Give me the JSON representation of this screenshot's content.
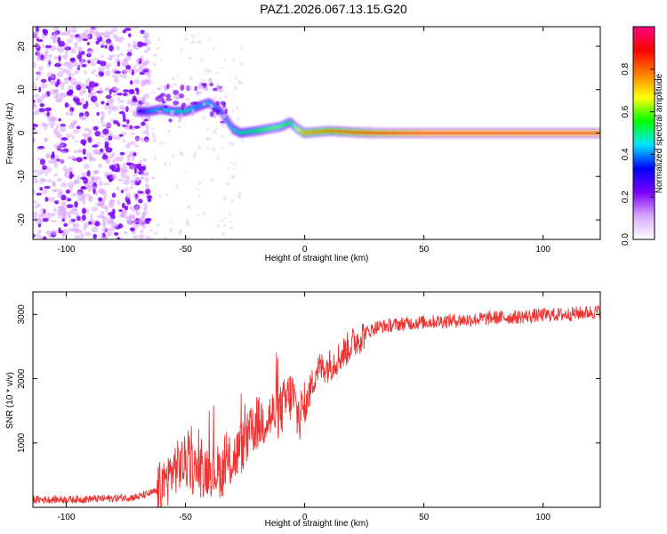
{
  "title": "PAZ1.2026.067.13.15.G20",
  "chart_data": [
    {
      "type": "heatmap",
      "name": "spectrogram",
      "xlabel": "Height of straight line (km)",
      "ylabel": "Frequency (Hz)",
      "xlim": [
        -114,
        124
      ],
      "ylim": [
        -24.5,
        24.5
      ],
      "x_ticks": [
        -100,
        -50,
        0,
        50,
        100
      ],
      "y_ticks": [
        -20,
        -10,
        0,
        10,
        20
      ],
      "colorbar": {
        "label": "Normalized spectral amplitude",
        "range": [
          0,
          1
        ],
        "ticks": [
          0.0,
          0.2,
          0.4,
          0.6,
          0.8
        ],
        "colors": [
          "#ffffff",
          "#d9a6ff",
          "#7a00ff",
          "#0000ff",
          "#00e5ff",
          "#00ff00",
          "#ffff00",
          "#ff7f00",
          "#ff0000",
          "#ff0080"
        ]
      },
      "main_tone": {
        "x": [
          -70,
          -65,
          -60,
          -55,
          -50,
          -45,
          -40,
          -35,
          -30,
          -27,
          -20,
          -15,
          -10,
          -6,
          -3,
          0,
          10,
          20,
          30,
          50,
          80,
          100,
          124
        ],
        "freq": [
          5,
          5,
          5.5,
          5,
          5,
          6,
          7,
          5,
          1,
          0,
          0.5,
          1,
          1.5,
          2.5,
          1,
          0,
          0.5,
          0.2,
          0,
          0,
          0,
          0,
          0
        ],
        "amplitude": [
          0.3,
          0.4,
          0.45,
          0.45,
          0.5,
          0.4,
          0.45,
          0.4,
          0.45,
          0.5,
          0.55,
          0.6,
          0.6,
          0.55,
          0.65,
          0.75,
          0.8,
          0.85,
          0.9,
          0.95,
          0.95,
          0.95,
          0.95
        ]
      },
      "noise_region_x": [
        -114,
        -65
      ]
    },
    {
      "type": "line",
      "name": "snr",
      "xlabel": "Height of straight line (km)",
      "ylabel": "SNR (10 * v/v)",
      "xlim": [
        -114,
        124
      ],
      "ylim": [
        0,
        3350
      ],
      "x_ticks": [
        -100,
        -50,
        0,
        50,
        100
      ],
      "y_ticks": [
        1000,
        2000,
        3000
      ],
      "color": "#ee3333",
      "series": [
        {
          "name": "SNR",
          "x": [
            -114,
            -100,
            -80,
            -70,
            -62,
            -58,
            -55,
            -50,
            -45,
            -40,
            -35,
            -30,
            -25,
            -20,
            -15,
            -10,
            -7,
            -5,
            -3,
            0,
            3,
            5,
            10,
            15,
            20,
            25,
            30,
            40,
            50,
            60,
            70,
            80,
            90,
            100,
            110,
            124
          ],
          "y": [
            120,
            120,
            140,
            160,
            250,
            400,
            600,
            700,
            550,
            600,
            550,
            750,
            1000,
            1300,
            1400,
            1500,
            1700,
            1750,
            1400,
            1550,
            1900,
            2150,
            2200,
            2350,
            2550,
            2700,
            2800,
            2850,
            2880,
            2900,
            2920,
            2950,
            2960,
            2990,
            3000,
            3050
          ]
        }
      ]
    }
  ]
}
